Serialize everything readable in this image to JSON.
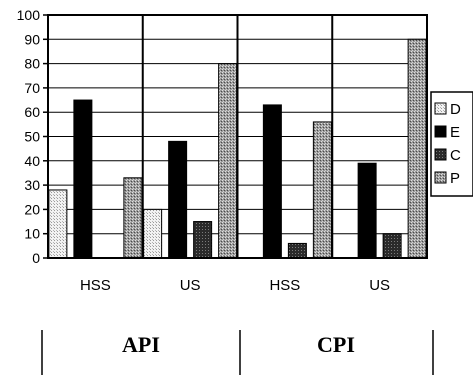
{
  "chart_data": {
    "type": "bar",
    "categories": [
      "HSS",
      "US",
      "HSS",
      "US"
    ],
    "groups": [
      "API",
      "CPI"
    ],
    "series": [
      {
        "name": "D",
        "values": [
          28,
          20,
          0,
          0
        ],
        "color": "#dcdcdc",
        "pattern": "dots-light"
      },
      {
        "name": "E",
        "values": [
          65,
          48,
          63,
          39
        ],
        "color": "#000000",
        "pattern": "solid"
      },
      {
        "name": "C",
        "values": [
          0,
          15,
          6,
          10
        ],
        "color": "#3a3a3a",
        "pattern": "dots-dark"
      },
      {
        "name": "P",
        "values": [
          33,
          80,
          56,
          90
        ],
        "color": "#a8a8a8",
        "pattern": "dots-medium"
      }
    ],
    "yticks": [
      0,
      10,
      20,
      30,
      40,
      50,
      60,
      70,
      80,
      90,
      100
    ],
    "ylim": [
      0,
      100
    ],
    "grid": true,
    "legend_position": "right",
    "title": "",
    "xlabel": "",
    "ylabel": ""
  }
}
